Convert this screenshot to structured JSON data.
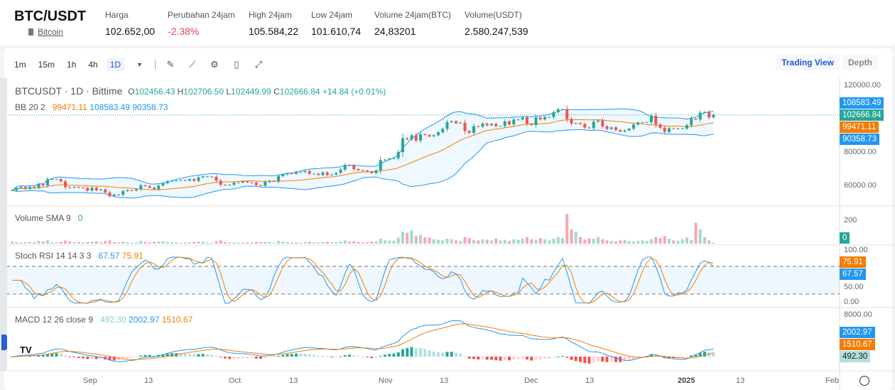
{
  "header": {
    "pair": "BTC/USDT",
    "coin": "Bitcoin",
    "stats": [
      {
        "label": "Harga",
        "value": "102.652,00"
      },
      {
        "label": "Perubahan 24jam",
        "value": "-2.38%",
        "color": "#e0455a"
      },
      {
        "label": "High 24jam",
        "value": "105.584,22"
      },
      {
        "label": "Low 24jam",
        "value": "101.610,74"
      },
      {
        "label": "Volume 24jam(BTC)",
        "value": "24,83201"
      },
      {
        "label": "Volume(USDT)",
        "value": "2.580.247,539"
      }
    ]
  },
  "toolbar": {
    "intervals": [
      "1m",
      "15m",
      "1h",
      "4h",
      "1D"
    ],
    "active": "1D",
    "icons": [
      "draw-icon",
      "indicator-icon",
      "settings-icon",
      "save-icon",
      "fullscreen-icon"
    ],
    "views": [
      "Trading View",
      "Depth"
    ],
    "active_view": "Trading View"
  },
  "legend": {
    "symbol": "BTCUSDT · 1D · Bittime",
    "o": "102456.43",
    "h": "102706.50",
    "l": "102449.99",
    "c": "102666.84",
    "chg": "+14.84 (+0.01%)",
    "bb_label": "BB 20 2",
    "bb_mid": "99471.11",
    "bb_up": "108583.49",
    "bb_low": "90358.73",
    "vol_label": "Volume SMA 9",
    "vol_val": "0",
    "stoch_label": "Stoch RSI 14 14 3 3",
    "stoch_k": "67.57",
    "stoch_d": "75.91",
    "macd_label": "MACD 12 26 close 9",
    "macd_hist": "492.30",
    "macd": "2002.97",
    "macd_signal": "1510.67"
  },
  "axis": {
    "price_ticks": [
      "120000.00",
      "80000.00",
      "60000.00"
    ],
    "vol_ticks": [
      "200"
    ],
    "stoch_ticks": [
      "100.00",
      "50.00",
      "0.00"
    ],
    "macd_ticks": [
      "8000.00"
    ],
    "time_ticks": [
      "Sep",
      "13",
      "Oct",
      "13",
      "Nov",
      "13",
      "Dec",
      "13",
      "2025",
      "13",
      "Feb"
    ]
  },
  "tags": {
    "bb_up": "108583.49",
    "last": "102666.84",
    "bb_mid": "99471.11",
    "bb_low": "90358.73",
    "vol": "0",
    "stoch_d": "75.91",
    "stoch_k": "67.57",
    "macd": "2002.97",
    "macd_signal": "1510.67",
    "macd_hist": "492.30"
  },
  "colors": {
    "up": "#26a69a",
    "down": "#ef5350",
    "bb": "#2196f3",
    "ma": "#f57c00",
    "up_vol": "#a5d8cf",
    "down_vol": "#f4a9b2"
  },
  "chart_data": {
    "type": "candlestick",
    "first_date": "Aug 15",
    "closes": [
      57500,
      58900,
      59500,
      58400,
      59500,
      59000,
      61200,
      60400,
      64100,
      64200,
      64200,
      62800,
      59400,
      59000,
      59400,
      59100,
      58900,
      57300,
      59100,
      57500,
      58000,
      56200,
      54000,
      54900,
      54800,
      57000,
      57600,
      57300,
      58100,
      60500,
      60000,
      59100,
      58200,
      60300,
      61700,
      62900,
      63200,
      63300,
      63600,
      63300,
      64200,
      63100,
      65200,
      65800,
      65800,
      65600,
      63300,
      60800,
      60600,
      60800,
      62100,
      62100,
      62800,
      62200,
      62100,
      60600,
      60300,
      62500,
      63200,
      62900,
      66000,
      67000,
      67600,
      67400,
      68400,
      68400,
      69000,
      67400,
      67400,
      66700,
      68200,
      66600,
      67000,
      67900,
      69900,
      72700,
      72300,
      70200,
      69500,
      69300,
      68700,
      67800,
      69400,
      75600,
      75900,
      76500,
      76700,
      80400,
      88700,
      88000,
      90500,
      87300,
      91100,
      90600,
      89800,
      90500,
      92300,
      94300,
      98300,
      98900,
      97700,
      98000,
      93000,
      91900,
      95900,
      95600,
      97500,
      96400,
      97300,
      95900,
      96000,
      98800,
      97000,
      99900,
      99900,
      101100,
      97400,
      96600,
      101100,
      100000,
      101400,
      101400,
      104300,
      106000,
      106100,
      100200,
      97400,
      97800,
      97200,
      95100,
      94700,
      98600,
      99300,
      95800,
      94200,
      95200,
      93600,
      92700,
      93400,
      94400,
      96900,
      98100,
      98200,
      98300,
      102100,
      96900,
      95000,
      92500,
      94700,
      94500,
      94500,
      94500,
      96500,
      100500,
      99900,
      104000,
      104400,
      101200,
      102667
    ],
    "volumes": [
      20,
      15,
      10,
      12,
      14,
      12,
      25,
      18,
      30,
      12,
      10,
      15,
      28,
      20,
      12,
      14,
      10,
      15,
      18,
      22,
      12,
      25,
      30,
      15,
      10,
      20,
      14,
      8,
      12,
      25,
      15,
      10,
      18,
      20,
      22,
      15,
      12,
      10,
      8,
      10,
      12,
      15,
      20,
      18,
      10,
      8,
      22,
      30,
      15,
      10,
      12,
      8,
      10,
      12,
      10,
      18,
      14,
      16,
      12,
      8,
      25,
      20,
      15,
      10,
      12,
      8,
      15,
      18,
      12,
      10,
      15,
      18,
      12,
      14,
      20,
      30,
      18,
      22,
      15,
      10,
      12,
      18,
      22,
      45,
      30,
      28,
      25,
      55,
      110,
      100,
      120,
      70,
      80,
      60,
      55,
      40,
      35,
      30,
      45,
      40,
      30,
      25,
      60,
      50,
      35,
      30,
      40,
      35,
      30,
      45,
      30,
      35,
      25,
      40,
      35,
      45,
      60,
      40,
      35,
      50,
      40,
      30,
      45,
      60,
      50,
      270,
      130,
      110,
      60,
      40,
      50,
      45,
      60,
      40,
      30,
      25,
      20,
      30,
      35,
      25,
      20,
      25,
      30,
      25,
      40,
      60,
      50,
      70,
      45,
      30,
      25,
      40,
      55,
      35,
      190,
      130,
      60,
      30,
      10
    ]
  }
}
